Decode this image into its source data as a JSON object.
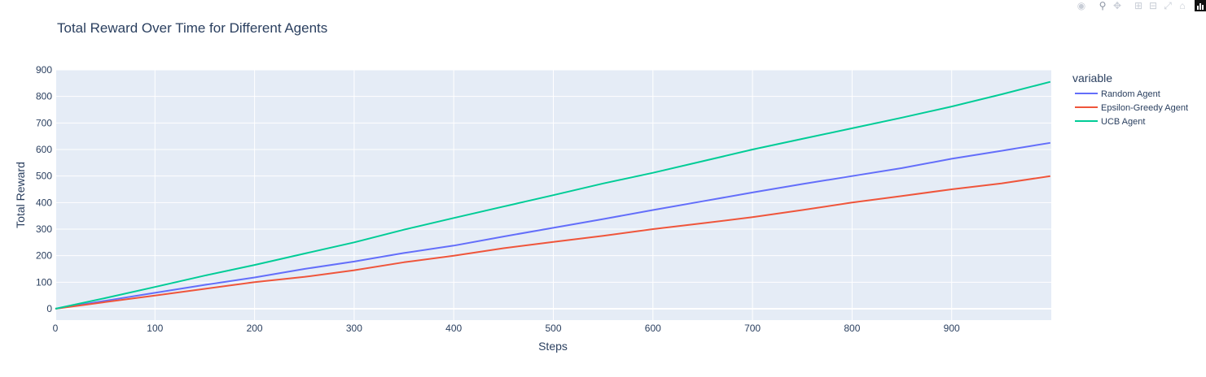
{
  "chart_data": {
    "type": "line",
    "title": "Total Reward Over Time for Different Agents",
    "xlabel": "Steps",
    "ylabel": "Total Reward",
    "xlim": [
      0,
      1000
    ],
    "ylim": [
      -40,
      900
    ],
    "xticks": [
      0,
      100,
      200,
      300,
      400,
      500,
      600,
      700,
      800,
      900
    ],
    "yticks": [
      0,
      100,
      200,
      300,
      400,
      500,
      600,
      700,
      800,
      900
    ],
    "grid": true,
    "legend_title": "variable",
    "legend_position": "right",
    "x": [
      0,
      50,
      100,
      150,
      200,
      250,
      300,
      350,
      400,
      450,
      500,
      550,
      600,
      650,
      700,
      750,
      800,
      850,
      900,
      950,
      999
    ],
    "series": [
      {
        "name": "Random Agent",
        "color": "#636efa",
        "values": [
          0,
          30,
          60,
          90,
          118,
          150,
          178,
          210,
          238,
          272,
          305,
          338,
          372,
          405,
          438,
          470,
          500,
          530,
          565,
          595,
          625
        ]
      },
      {
        "name": "Epsilon-Greedy Agent",
        "color": "#ef553b",
        "values": [
          0,
          25,
          50,
          75,
          100,
          120,
          145,
          175,
          200,
          228,
          252,
          275,
          300,
          322,
          345,
          372,
          400,
          425,
          450,
          472,
          500
        ]
      },
      {
        "name": "UCB Agent",
        "color": "#00cc96",
        "values": [
          0,
          40,
          82,
          125,
          165,
          208,
          250,
          298,
          342,
          385,
          428,
          472,
          512,
          556,
          600,
          640,
          680,
          720,
          762,
          808,
          855
        ]
      }
    ]
  },
  "modebar": {
    "icons": [
      "camera-icon",
      "zoom-icon",
      "pan-icon",
      "zoom-in-icon",
      "zoom-out-icon",
      "autoscale-icon",
      "home-icon",
      "plotly-logo-icon"
    ]
  }
}
